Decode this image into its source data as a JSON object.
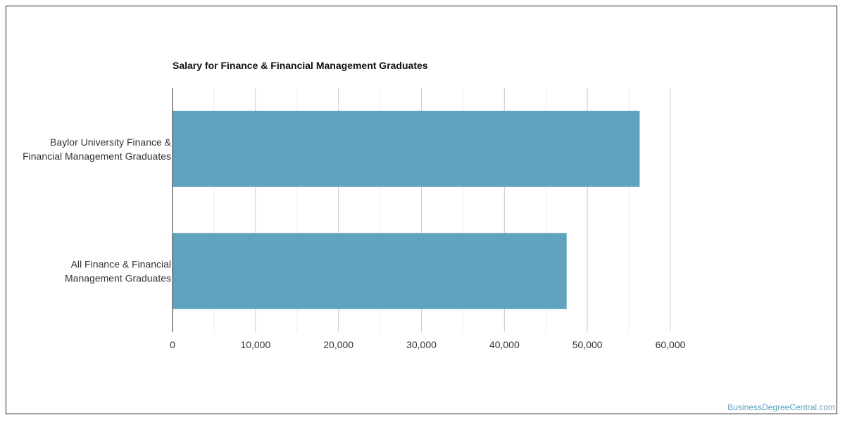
{
  "chart_data": {
    "type": "bar",
    "orientation": "horizontal",
    "title": "Salary for Finance & Financial Management Graduates",
    "categories": [
      [
        "Baylor University Finance &",
        "Financial Management Graduates"
      ],
      [
        "All Finance & Financial",
        "Management Graduates"
      ]
    ],
    "values": [
      56300,
      47500
    ],
    "xlim": [
      0,
      60000
    ],
    "xticks": [
      0,
      10000,
      20000,
      30000,
      40000,
      50000,
      60000
    ],
    "xtick_labels": [
      "0",
      "10,000",
      "20,000",
      "30,000",
      "40,000",
      "50,000",
      "60,000"
    ],
    "bar_color": "#5fa3bf",
    "grid": true,
    "xlabel": "",
    "ylabel": ""
  },
  "credit": "BusinessDegreeCentral.com"
}
